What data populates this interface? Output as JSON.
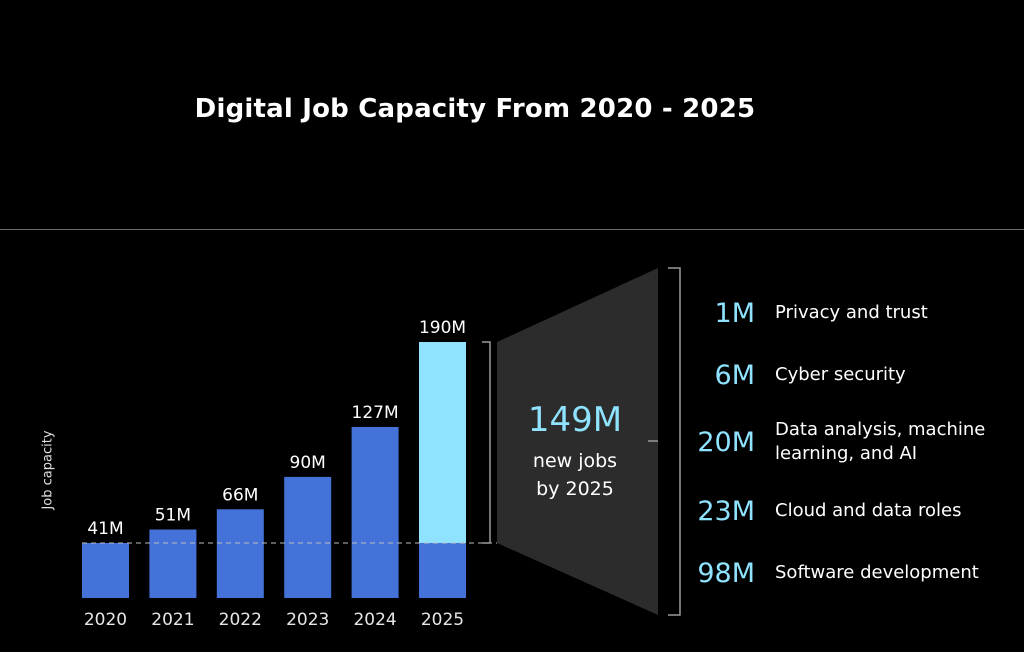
{
  "header": {
    "title": "Digital Job Capacity From 2020 - 2025"
  },
  "center": {
    "value": "149M",
    "caption_line1": "new jobs",
    "caption_line2": "by 2025"
  },
  "colors": {
    "bar": "#4472d9",
    "highlight": "#8fe3ff",
    "wedge": "#2c2c2c",
    "background": "#000000"
  },
  "chart_data": {
    "type": "bar",
    "ylabel": "Job capacity",
    "categories": [
      "2020",
      "2021",
      "2022",
      "2023",
      "2024",
      "2025"
    ],
    "values": [
      41,
      51,
      66,
      90,
      127,
      190
    ],
    "value_labels": [
      "41M",
      "51M",
      "66M",
      "90M",
      "127M",
      "190M"
    ],
    "baseline": 41,
    "breakdown": [
      {
        "value": "1M",
        "label": "Privacy and trust"
      },
      {
        "value": "6M",
        "label": "Cyber security"
      },
      {
        "value": "20M",
        "label": "Data analysis, machine learning, and AI"
      },
      {
        "value": "23M",
        "label": "Cloud and data roles"
      },
      {
        "value": "98M",
        "label": "Software development"
      }
    ]
  }
}
